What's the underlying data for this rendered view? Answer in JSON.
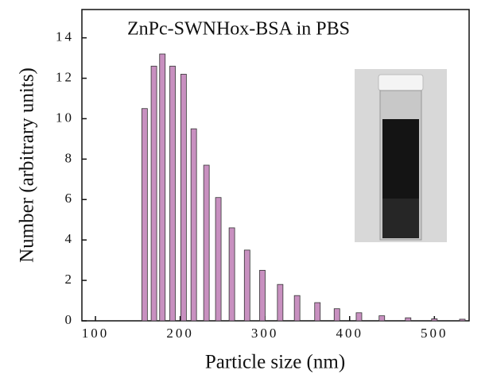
{
  "chart_data": {
    "type": "bar",
    "title": "ZnPc-SWNHox-BSA in PBS",
    "x_label": "Particle size (nm)",
    "y_label": "Number (arbitrary units)",
    "x": [
      158,
      169,
      179,
      191,
      204,
      216,
      231,
      245,
      261,
      279,
      297,
      318,
      338,
      362,
      385,
      411,
      438,
      469,
      500,
      533
    ],
    "values": [
      10.5,
      12.6,
      13.2,
      12.6,
      12.2,
      9.5,
      7.7,
      6.1,
      4.6,
      3.5,
      2.5,
      1.8,
      1.25,
      0.9,
      0.6,
      0.4,
      0.25,
      0.15,
      0.1,
      0.08
    ],
    "color": "#c890c0",
    "xlim": [
      84,
      541
    ],
    "xticks": [
      100,
      200,
      300,
      400,
      500
    ],
    "ylim": [
      0,
      15.4
    ],
    "yticks": [
      0,
      2,
      4,
      6,
      8,
      10,
      12,
      14
    ]
  }
}
